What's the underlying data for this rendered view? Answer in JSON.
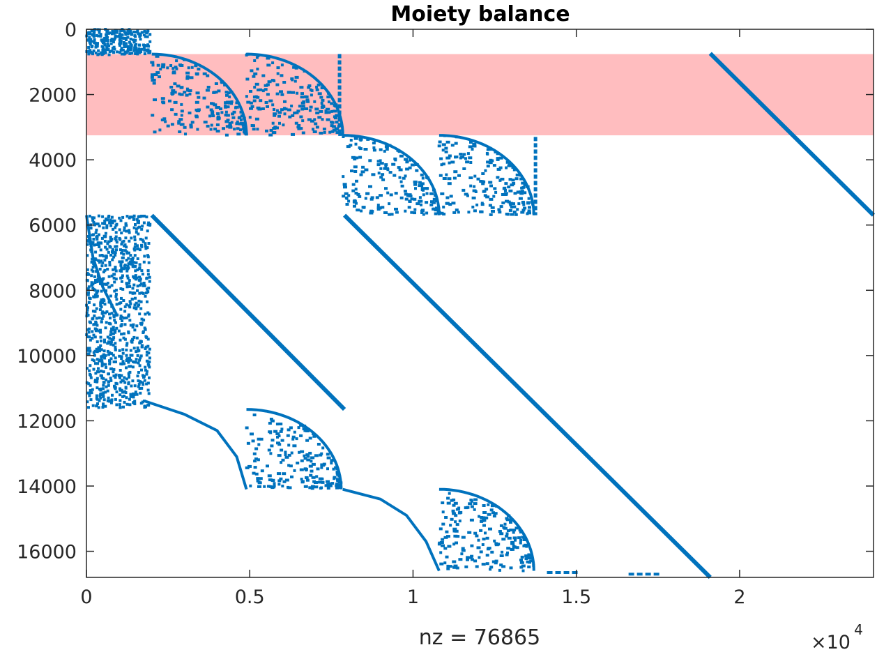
{
  "chart_data": {
    "type": "scatter",
    "subtype": "sparsity-pattern",
    "title": "Moiety balance",
    "xlabel": "nz = 76865",
    "xlim": [
      0,
      24100
    ],
    "ylim": [
      0,
      16800
    ],
    "y_reversed": true,
    "x_ticks": [
      0,
      5000,
      10000,
      15000,
      20000
    ],
    "x_tick_labels": [
      "0",
      "0.5",
      "1",
      "1.5",
      "2"
    ],
    "x_exponent_base": "×10",
    "x_exponent_power": "4",
    "y_ticks": [
      0,
      2000,
      4000,
      6000,
      8000,
      10000,
      12000,
      14000,
      16000
    ],
    "y_tick_labels": [
      "0",
      "2000",
      "4000",
      "6000",
      "8000",
      "10000",
      "12000",
      "14000",
      "16000"
    ],
    "grid": false,
    "marker_color": "#0072BD",
    "highlight_band": {
      "rows": [
        760,
        3250
      ],
      "color": "#FFBDBF"
    },
    "diagonals": [
      {
        "x": [
          2000,
          7900
        ],
        "y": [
          5700,
          11650
        ]
      },
      {
        "x": [
          7900,
          19100
        ],
        "y": [
          5700,
          16800
        ]
      },
      {
        "x": [
          19100,
          24100
        ],
        "y": [
          740,
          5700
        ]
      }
    ],
    "dense_blocks": [
      {
        "x": [
          0,
          2000
        ],
        "y": [
          0,
          780
        ]
      },
      {
        "x": [
          0,
          2000
        ],
        "y": [
          5700,
          11600
        ]
      }
    ],
    "triangle_blocks": [
      {
        "x": [
          2000,
          4900
        ],
        "y": [
          760,
          3250
        ]
      },
      {
        "x": [
          4900,
          7850
        ],
        "y": [
          760,
          3250
        ]
      },
      {
        "x": [
          7850,
          10800
        ],
        "y": [
          3250,
          5700
        ]
      },
      {
        "x": [
          10800,
          13700
        ],
        "y": [
          3250,
          5700
        ]
      },
      {
        "x": [
          4900,
          7800
        ],
        "y": [
          11650,
          14100
        ]
      },
      {
        "x": [
          10800,
          13700
        ],
        "y": [
          14100,
          16600
        ]
      }
    ],
    "curves": [
      {
        "x": [
          1800,
          3000,
          4000,
          4600,
          4900
        ],
        "y": [
          11400,
          11800,
          12300,
          13100,
          14100
        ]
      },
      {
        "x": [
          7850,
          9000,
          9800,
          10400,
          10800
        ],
        "y": [
          14100,
          14400,
          14900,
          15700,
          16600
        ]
      },
      {
        "x": [
          0,
          200,
          500,
          700,
          900
        ],
        "y": [
          5700,
          7000,
          7900,
          8300,
          8700
        ]
      }
    ],
    "vertical_segments": [
      {
        "x": 7750,
        "y": [
          760,
          3200
        ]
      },
      {
        "x": 13750,
        "y": [
          3300,
          5700
        ]
      }
    ],
    "scattered_segments": [
      {
        "x": [
          14100,
          15100
        ],
        "y": [
          16650,
          16650
        ]
      },
      {
        "x": [
          16600,
          17600
        ],
        "y": [
          16700,
          16700
        ]
      }
    ]
  }
}
